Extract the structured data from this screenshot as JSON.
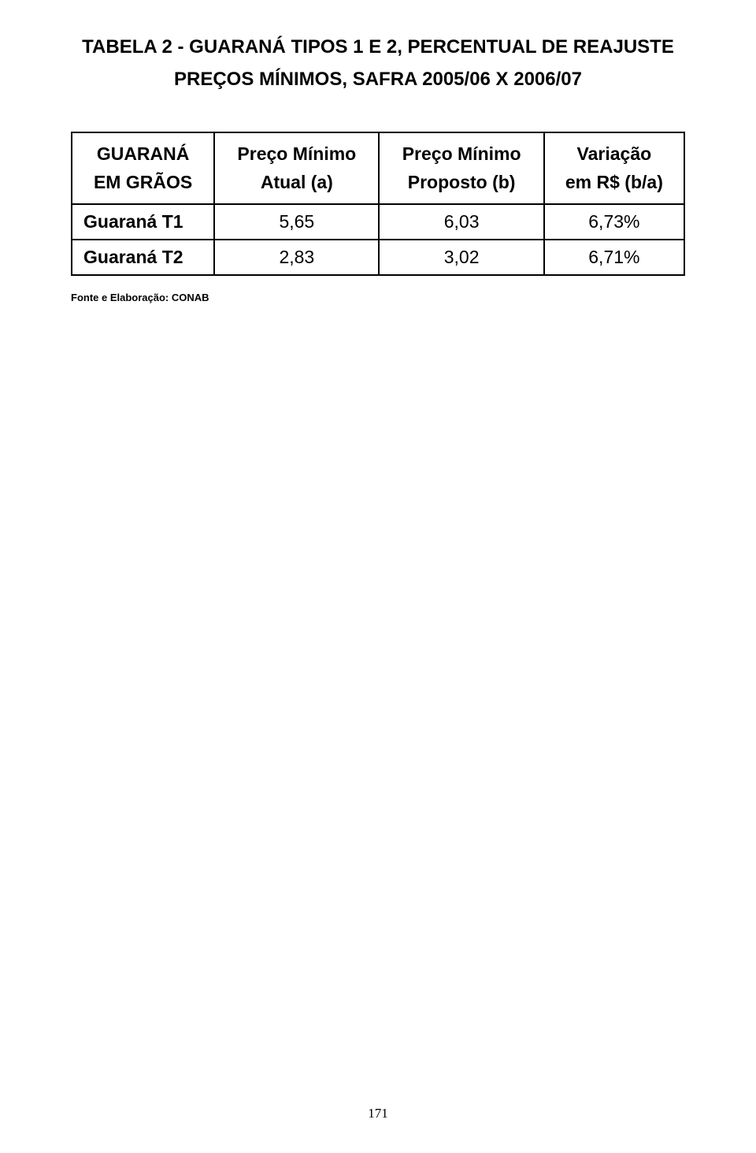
{
  "title": {
    "line1": "TABELA 2 - GUARANÁ TIPOS  1 E 2,  PERCENTUAL DE REAJUSTE",
    "line2": "PREÇOS MÍNIMOS,  SAFRA  2005/06  X  2006/07"
  },
  "table": {
    "headers": {
      "col1": {
        "top": "GUARANÁ",
        "bottom": "EM GRÃOS"
      },
      "col2": {
        "top": "Preço Mínimo",
        "bottom": "Atual (a)"
      },
      "col3": {
        "top": "Preço Mínimo",
        "bottom": "Proposto (b)"
      },
      "col4": {
        "top": "Variação",
        "bottom": "em R$ (b/a)"
      }
    },
    "rows": [
      {
        "label": "Guaraná T1",
        "atual": "5,65",
        "proposto": "6,03",
        "variacao": "6,73%"
      },
      {
        "label": "Guaraná T2",
        "atual": "2,83",
        "proposto": "3,02",
        "variacao": "6,71%"
      }
    ]
  },
  "source": "Fonte e Elaboração: CONAB",
  "page_number": "171",
  "style": {
    "background_color": "#ffffff",
    "text_color": "#000000",
    "border_color": "#000000",
    "title_fontsize": 24,
    "cell_fontsize": 23,
    "source_fontsize": 13,
    "page_number_fontsize": 17,
    "border_width": 2
  }
}
